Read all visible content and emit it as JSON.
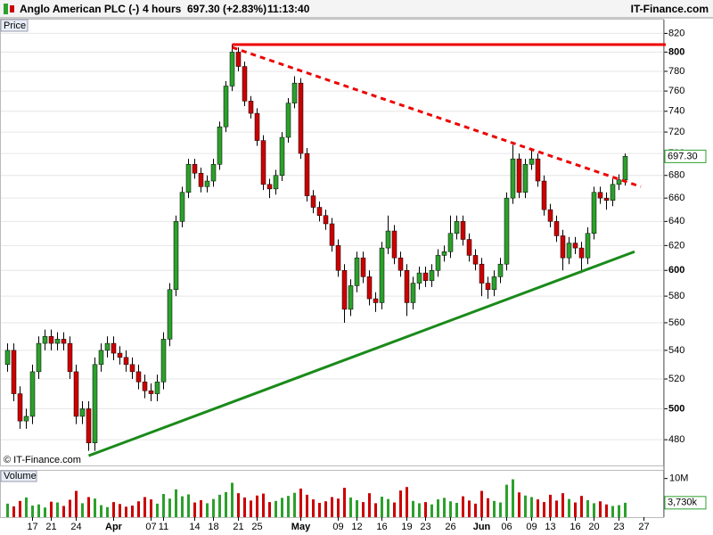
{
  "chart_data": {
    "type": "candlestick",
    "title": "Anglo American PLC (-)",
    "interval": "4 hours",
    "quote": "697.30 (+2.83%)",
    "time": "11:13:40",
    "source": "IT-Finance.com",
    "watermark": "© IT-Finance.com",
    "price_label": "Price",
    "volume_label": "Volume",
    "categories": [
      null,
      null,
      null,
      null,
      "17",
      null,
      null,
      "21",
      null,
      null,
      null,
      "24",
      null,
      null,
      null,
      null,
      null,
      "Apr",
      null,
      null,
      null,
      null,
      null,
      "07",
      null,
      "11",
      null,
      null,
      null,
      null,
      "14",
      null,
      null,
      "18",
      null,
      null,
      null,
      "21",
      null,
      null,
      "25",
      null,
      null,
      null,
      null,
      null,
      null,
      "May",
      null,
      null,
      null,
      null,
      null,
      "09",
      null,
      null,
      "12",
      null,
      null,
      null,
      "16",
      null,
      null,
      null,
      "19",
      null,
      null,
      "23",
      null,
      null,
      null,
      "26",
      null,
      null,
      null,
      null,
      "Jun",
      null,
      null,
      null,
      "06",
      null,
      null,
      null,
      "09",
      null,
      null,
      "13",
      null,
      null,
      null,
      "16",
      null,
      null,
      "20",
      null,
      null,
      null,
      "23",
      null,
      null,
      null,
      "27",
      null,
      null,
      null
    ],
    "open": [
      530,
      540,
      510,
      492,
      495,
      525,
      545,
      550,
      545,
      548,
      545,
      525,
      495,
      500,
      478,
      530,
      540,
      545,
      538,
      535,
      530,
      525,
      518,
      512,
      510,
      518,
      548,
      585,
      640,
      665,
      690,
      682,
      670,
      675,
      690,
      725,
      765,
      800,
      785,
      750,
      738,
      712,
      672,
      668,
      680,
      715,
      748,
      768,
      700,
      662,
      652,
      645,
      638,
      620,
      600,
      570,
      588,
      610,
      595,
      578,
      575,
      618,
      632,
      610,
      600,
      575,
      590,
      598,
      592,
      600,
      612,
      615,
      630,
      640,
      625,
      612,
      605,
      590,
      585,
      595,
      605,
      660,
      695,
      665,
      690,
      695,
      675,
      650,
      640,
      628,
      610,
      622,
      618,
      610,
      630,
      665,
      660,
      658,
      672,
      676,
      null,
      null,
      null,
      null,
      null,
      null
    ],
    "high": [
      545,
      545,
      515,
      500,
      530,
      550,
      555,
      555,
      553,
      553,
      550,
      530,
      505,
      505,
      535,
      545,
      550,
      550,
      543,
      540,
      535,
      530,
      523,
      517,
      523,
      553,
      590,
      645,
      670,
      695,
      695,
      687,
      680,
      695,
      730,
      770,
      808,
      805,
      790,
      755,
      743,
      717,
      677,
      685,
      720,
      753,
      775,
      773,
      705,
      667,
      657,
      650,
      643,
      625,
      605,
      593,
      615,
      615,
      600,
      583,
      623,
      645,
      637,
      615,
      605,
      595,
      603,
      603,
      605,
      617,
      620,
      645,
      645,
      645,
      630,
      617,
      610,
      595,
      600,
      610,
      665,
      708,
      700,
      695,
      705,
      700,
      680,
      655,
      645,
      633,
      627,
      627,
      623,
      635,
      670,
      670,
      665,
      677,
      681,
      700,
      null,
      null,
      null,
      null,
      null,
      null
    ],
    "low": [
      525,
      505,
      487,
      487,
      490,
      520,
      540,
      540,
      540,
      540,
      520,
      490,
      490,
      473,
      473,
      525,
      535,
      533,
      530,
      525,
      520,
      513,
      507,
      505,
      505,
      513,
      543,
      580,
      635,
      660,
      677,
      665,
      665,
      670,
      685,
      720,
      760,
      780,
      745,
      733,
      707,
      667,
      660,
      663,
      675,
      710,
      743,
      695,
      657,
      647,
      640,
      633,
      615,
      595,
      560,
      565,
      583,
      590,
      573,
      568,
      570,
      613,
      605,
      595,
      565,
      570,
      585,
      587,
      587,
      595,
      607,
      610,
      625,
      620,
      607,
      600,
      580,
      578,
      580,
      590,
      600,
      655,
      660,
      660,
      685,
      670,
      645,
      635,
      623,
      600,
      605,
      613,
      598,
      605,
      625,
      655,
      650,
      653,
      667,
      671,
      null,
      null,
      null,
      null,
      null,
      null
    ],
    "close": [
      540,
      510,
      492,
      495,
      525,
      545,
      550,
      545,
      548,
      545,
      525,
      495,
      500,
      478,
      530,
      540,
      545,
      538,
      535,
      530,
      525,
      518,
      512,
      510,
      518,
      548,
      585,
      640,
      665,
      690,
      682,
      670,
      675,
      690,
      725,
      765,
      800,
      785,
      750,
      738,
      712,
      672,
      668,
      680,
      715,
      748,
      768,
      700,
      662,
      652,
      645,
      638,
      620,
      600,
      570,
      588,
      610,
      595,
      578,
      575,
      618,
      632,
      610,
      600,
      575,
      590,
      598,
      592,
      600,
      612,
      615,
      630,
      640,
      625,
      612,
      605,
      590,
      585,
      595,
      605,
      660,
      695,
      665,
      690,
      695,
      675,
      650,
      640,
      628,
      610,
      622,
      618,
      610,
      630,
      665,
      660,
      658,
      672,
      676,
      697.3,
      null,
      null,
      null,
      null,
      null,
      null
    ],
    "volume": [
      3500,
      2800,
      4200,
      5100,
      3000,
      3300,
      2500,
      4000,
      3800,
      2900,
      4500,
      6800,
      3600,
      5200,
      4800,
      3100,
      2600,
      3900,
      3400,
      2700,
      3000,
      4100,
      5200,
      4600,
      3500,
      6000,
      4800,
      7200,
      5400,
      5900,
      3800,
      4400,
      3600,
      4700,
      5800,
      6500,
      8900,
      6200,
      5100,
      4300,
      5600,
      6100,
      3900,
      4200,
      5000,
      5500,
      6300,
      7400,
      5800,
      4600,
      3700,
      4100,
      5200,
      4800,
      7600,
      5100,
      4400,
      3900,
      6200,
      3600,
      5300,
      4700,
      3800,
      6900,
      7800,
      4200,
      3600,
      3900,
      3300,
      4600,
      5000,
      4100,
      3700,
      5400,
      4300,
      3500,
      6800,
      4900,
      4200,
      3800,
      8400,
      9800,
      6400,
      5600,
      5200,
      4600,
      3900,
      5800,
      4300,
      6200,
      4700,
      3800,
      5500,
      4400,
      3600,
      4100,
      3300,
      2900,
      3100,
      3730,
      null,
      null,
      null,
      null,
      null,
      null
    ],
    "up_color": "#2ca02c",
    "down_color": "#cc0000",
    "wick_color": "#000000",
    "log_scale": true,
    "grid": true,
    "ylim": [
      464,
      835
    ],
    "yticks": [
      480,
      500,
      520,
      540,
      560,
      580,
      600,
      620,
      640,
      660,
      680,
      700,
      720,
      740,
      760,
      780,
      800,
      820
    ],
    "volume_ylim": [
      0,
      12000
    ],
    "volume_yticks": [
      {
        "value": 10000,
        "label": "10M"
      }
    ],
    "last_price": {
      "value": 697.3,
      "label": "697.30"
    },
    "last_volume": {
      "value": 3730,
      "label": "3,730k"
    },
    "trendlines": [
      {
        "color": "#ee0000",
        "dashed": false,
        "x": [
          36,
          105.5
        ],
        "y": [
          808,
          808
        ]
      },
      {
        "color": "#ee0000",
        "dashed": true,
        "x": [
          36,
          101.5
        ],
        "y": [
          805,
          670
        ]
      },
      {
        "color": "#1a8a1a",
        "dashed": false,
        "x": [
          13,
          100.5
        ],
        "y": [
          470,
          615
        ]
      }
    ]
  }
}
